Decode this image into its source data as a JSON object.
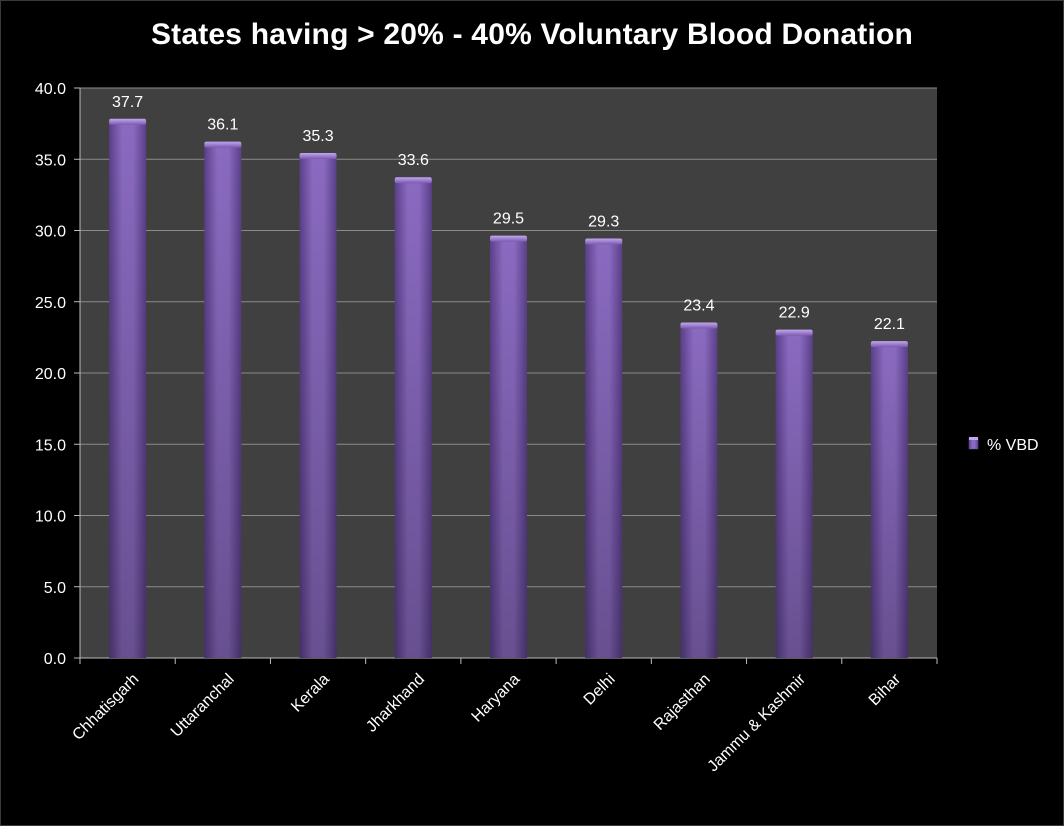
{
  "chart_data": {
    "type": "bar",
    "title": "States having > 20% - 40% Voluntary Blood Donation",
    "categories": [
      "Chhatisgarh",
      "Uttaranchal",
      "Kerala",
      "Jharkhand",
      "Haryana",
      "Delhi",
      "Rajasthan",
      "Jammu & Kashmir",
      "Bihar"
    ],
    "series": [
      {
        "name": "% VBD",
        "values": [
          37.7,
          36.1,
          35.3,
          33.6,
          29.5,
          29.3,
          23.4,
          22.9,
          22.1
        ]
      }
    ],
    "value_labels": [
      "37.7",
      "36.1",
      "35.3",
      "33.6",
      "29.5",
      "29.3",
      "23.4",
      "22.9",
      "22.1"
    ],
    "y_ticks": [
      "0.0",
      "5.0",
      "10.0",
      "15.0",
      "20.0",
      "25.0",
      "30.0",
      "35.0",
      "40.0"
    ],
    "ylim": [
      0,
      40
    ],
    "grid": true,
    "legend_position": "right",
    "colors": {
      "bar": "#8060b0",
      "bar_light": "#9a7bcc",
      "bar_dark": "#5e4290",
      "plot_bg": "#404040",
      "page_bg": "#000000",
      "grid": "#8a8a8a"
    }
  }
}
